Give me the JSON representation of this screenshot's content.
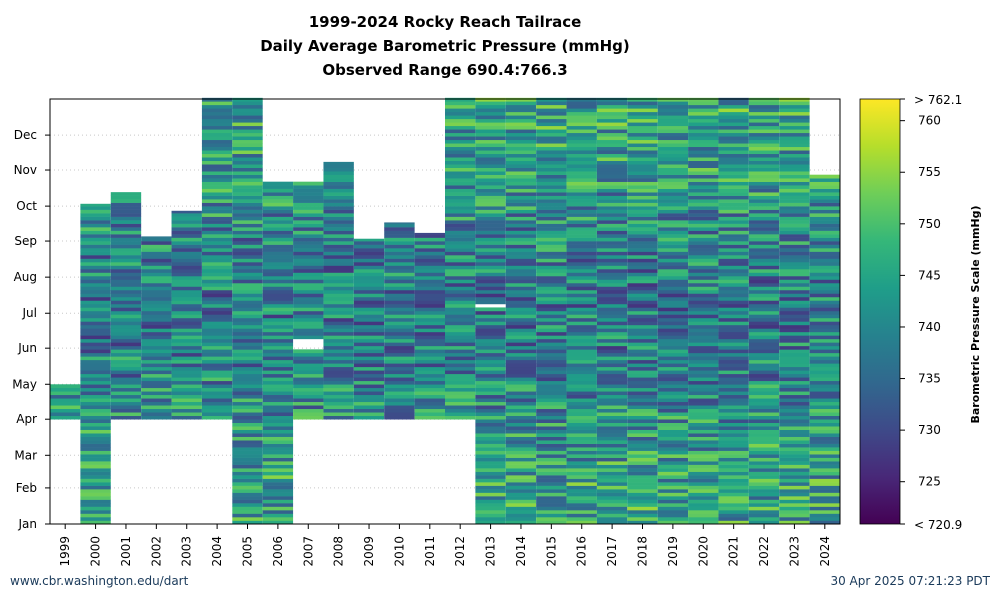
{
  "chart_data": {
    "type": "heatmap",
    "title_lines": [
      "1999-2024 Rocky Reach Tailrace",
      "Daily Average Barometric Pressure (mmHg)",
      "Observed Range 690.4:766.3"
    ],
    "x_categories": [
      "1999",
      "2000",
      "2001",
      "2002",
      "2003",
      "2004",
      "2005",
      "2006",
      "2007",
      "2008",
      "2009",
      "2010",
      "2011",
      "2012",
      "2013",
      "2014",
      "2015",
      "2016",
      "2017",
      "2018",
      "2019",
      "2020",
      "2021",
      "2022",
      "2023",
      "2024"
    ],
    "y_ticks": [
      "Jan",
      "Feb",
      "Mar",
      "Apr",
      "May",
      "Jun",
      "Jul",
      "Aug",
      "Sep",
      "Oct",
      "Nov",
      "Dec"
    ],
    "y_range_day_of_year": [
      1,
      366
    ],
    "grid": true,
    "coverage_day_of_year": [
      {
        "year": "1999",
        "start": 91,
        "end": 120
      },
      {
        "year": "2000",
        "start": 1,
        "end": 275
      },
      {
        "year": "2001",
        "start": 91,
        "end": 285
      },
      {
        "year": "2002",
        "start": 91,
        "end": 247
      },
      {
        "year": "2003",
        "start": 91,
        "end": 269
      },
      {
        "year": "2004",
        "start": 91,
        "end": 366
      },
      {
        "year": "2005",
        "start": 1,
        "end": 366
      },
      {
        "year": "2006",
        "start": 1,
        "end": 294
      },
      {
        "year": "2007",
        "start": 91,
        "end": 294
      },
      {
        "year": "2008",
        "start": 91,
        "end": 311
      },
      {
        "year": "2009",
        "start": 91,
        "end": 245
      },
      {
        "year": "2010",
        "start": 91,
        "end": 259
      },
      {
        "year": "2011",
        "start": 91,
        "end": 250
      },
      {
        "year": "2012",
        "start": 91,
        "end": 366
      },
      {
        "year": "2013",
        "start": 1,
        "end": 366
      },
      {
        "year": "2014",
        "start": 1,
        "end": 366
      },
      {
        "year": "2015",
        "start": 1,
        "end": 366
      },
      {
        "year": "2016",
        "start": 1,
        "end": 366
      },
      {
        "year": "2017",
        "start": 1,
        "end": 366
      },
      {
        "year": "2018",
        "start": 1,
        "end": 366
      },
      {
        "year": "2019",
        "start": 1,
        "end": 366
      },
      {
        "year": "2020",
        "start": 1,
        "end": 366
      },
      {
        "year": "2021",
        "start": 1,
        "end": 366
      },
      {
        "year": "2022",
        "start": 1,
        "end": 366
      },
      {
        "year": "2023",
        "start": 1,
        "end": 366
      },
      {
        "year": "2024",
        "start": 1,
        "end": 300
      }
    ],
    "gaps_day_of_year": [
      {
        "year": "2001",
        "start": 149,
        "end": 150
      },
      {
        "year": "2007",
        "start": 149,
        "end": 159
      },
      {
        "year": "2013",
        "start": 185,
        "end": 187
      }
    ],
    "colorbar": {
      "label": "Barometric Pressure Scale (mmHg)",
      "min": 720.9,
      "max": 762.1,
      "ticks": [
        725,
        730,
        735,
        740,
        745,
        750,
        755,
        760
      ],
      "tick_labels": [
        "725",
        "730",
        "735",
        "740",
        "745",
        "750",
        "755",
        "760"
      ],
      "min_label": "< 720.9",
      "max_label": "> 762.1",
      "colormap": "viridis"
    }
  },
  "footer": {
    "source": "www.cbr.washington.edu/dart",
    "timestamp": "30 Apr 2025 07:21:23 PDT"
  }
}
